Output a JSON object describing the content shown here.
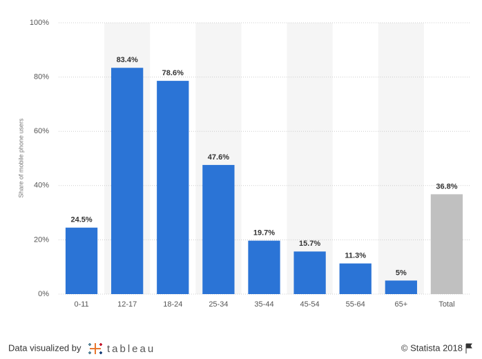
{
  "chart_data": {
    "type": "bar",
    "y_label": "Share of mobile phone users",
    "categories": [
      "0-11",
      "12-17",
      "18-24",
      "25-34",
      "35-44",
      "45-54",
      "55-64",
      "65+",
      "Total"
    ],
    "values": [
      24.5,
      83.4,
      78.6,
      47.6,
      19.7,
      15.7,
      11.3,
      5,
      36.8
    ],
    "value_labels": [
      "24.5%",
      "83.4%",
      "78.6%",
      "47.6%",
      "19.7%",
      "15.7%",
      "11.3%",
      "5%",
      "36.8%"
    ],
    "colors": [
      "#2b74d6",
      "#2b74d6",
      "#2b74d6",
      "#2b74d6",
      "#2b74d6",
      "#2b74d6",
      "#2b74d6",
      "#2b74d6",
      "#c0c0c0"
    ],
    "ylim": [
      0,
      100
    ],
    "yticks": [
      {
        "value": 0,
        "label": "0%"
      },
      {
        "value": 20,
        "label": "20%"
      },
      {
        "value": 40,
        "label": "40%"
      },
      {
        "value": 60,
        "label": "60%"
      },
      {
        "value": 80,
        "label": "80%"
      },
      {
        "value": 100,
        "label": "100%"
      }
    ],
    "grid": true
  },
  "footer": {
    "credit": "Data visualized by",
    "logo": "tableau",
    "copyright": "© Statista 2018"
  }
}
